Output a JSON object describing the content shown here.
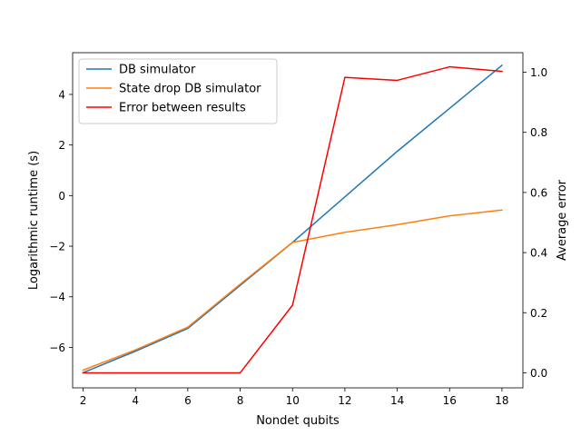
{
  "chart_data": {
    "type": "line",
    "xlabel": "Nondet qubits",
    "ylabel_left": "Logarithmic runtime (s)",
    "ylabel_right": "Average error",
    "xlim": [
      1.6,
      18.8
    ],
    "ylim_left": [
      -7.6,
      5.65
    ],
    "ylim_right": [
      -0.05,
      1.065
    ],
    "xticks": [
      2,
      4,
      6,
      8,
      10,
      12,
      14,
      16,
      18
    ],
    "yticks_left": [
      -6,
      -4,
      -2,
      0,
      2,
      4
    ],
    "yticks_right": [
      0.0,
      0.2,
      0.4,
      0.6,
      0.8,
      1.0
    ],
    "yticks_right_labels": [
      "0.0",
      "0.2",
      "0.4",
      "0.6",
      "0.8",
      "1.0"
    ],
    "grid": false,
    "legend_position": "upper-left",
    "series": [
      {
        "name": "DB simulator",
        "axis": "left",
        "color": "#1f77b4",
        "x": [
          2,
          4,
          6,
          8,
          10,
          12,
          14,
          16,
          18
        ],
        "y": [
          -7.0,
          -6.15,
          -5.25,
          -3.55,
          -1.85,
          -0.05,
          1.75,
          3.45,
          5.15
        ]
      },
      {
        "name": "State drop DB simulator",
        "axis": "left",
        "color": "#ff7f0e",
        "x": [
          2,
          4,
          6,
          8,
          10,
          12,
          14,
          16,
          18
        ],
        "y": [
          -6.9,
          -6.1,
          -5.2,
          -3.5,
          -1.85,
          -1.45,
          -1.15,
          -0.8,
          -0.57
        ]
      },
      {
        "name": "Error between results",
        "axis": "right",
        "color": "#ff0000",
        "x": [
          2,
          4,
          6,
          8,
          10,
          12,
          14,
          16,
          18
        ],
        "y": [
          0.0,
          0.0,
          0.0,
          0.0,
          0.225,
          0.983,
          0.973,
          1.018,
          1.003
        ]
      }
    ]
  }
}
